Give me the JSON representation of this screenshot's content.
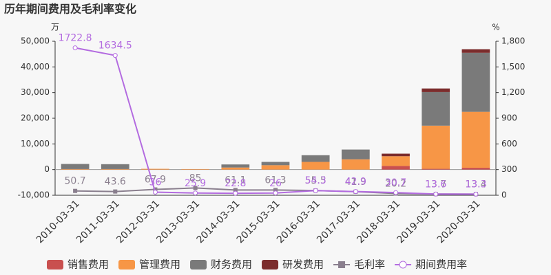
{
  "chart_data": {
    "type": "bar",
    "title": "历年期间费用及毛利率变化",
    "y_unit": "万",
    "y2_unit": "%",
    "categories": [
      "2010-03-31",
      "2011-03-31",
      "2012-03-31",
      "2013-03-31",
      "2014-03-31",
      "2015-03-31",
      "2016-03-31",
      "2017-03-31",
      "2018-03-31",
      "2019-03-31",
      "2020-03-31"
    ],
    "series": [
      {
        "name": "销售费用",
        "color": "#c9504f",
        "values": [
          0,
          0,
          0,
          0,
          0,
          0,
          0,
          0,
          1400,
          300,
          700
        ]
      },
      {
        "name": "管理费用",
        "color": "#f79646",
        "values": [
          200,
          200,
          300,
          200,
          800,
          1700,
          3000,
          4000,
          3800,
          16800,
          21800
        ]
      },
      {
        "name": "财务费用",
        "color": "#7a7a7a",
        "values": [
          2000,
          1900,
          0,
          0,
          1200,
          1300,
          2600,
          3800,
          0,
          13100,
          23000
        ]
      },
      {
        "name": "研发费用",
        "color": "#7b2c2c",
        "values": [
          0,
          0,
          0,
          0,
          0,
          0,
          0,
          0,
          1000,
          1400,
          1400
        ]
      },
      {
        "name": "毛利率",
        "type": "line",
        "axis": "y2",
        "color": "#8a7f8e",
        "marker": "square",
        "values": [
          50.7,
          43.6,
          67.9,
          85,
          61.1,
          61.3,
          55.5,
          41.9,
          20.2,
          13.7,
          13.4
        ]
      },
      {
        "name": "期间费用率",
        "type": "line",
        "axis": "y2",
        "color": "#b36be0",
        "marker": "circle",
        "values": [
          1722.8,
          1634.5,
          36,
          25.9,
          22.8,
          26,
          54.3,
          42.9,
          30.7,
          13.6,
          13.3
        ]
      }
    ],
    "ylim": [
      -10000,
      50000
    ],
    "yticks": [
      {
        "value": -10000,
        "label": "-10,000"
      },
      0,
      {
        "value": 10000,
        "label": "10,000"
      },
      {
        "value": 20000,
        "label": "20,000"
      },
      {
        "value": 30000,
        "label": "30,000"
      },
      {
        "value": 40000,
        "label": "40,000"
      },
      {
        "value": 50000,
        "label": "50,000"
      }
    ],
    "y2lim": [
      0,
      1800
    ],
    "y2ticks": [
      0,
      300,
      600,
      900,
      {
        "value": 1200,
        "label": "1,200"
      },
      {
        "value": 1500,
        "label": "1,500"
      },
      {
        "value": 1800,
        "label": "1,800"
      }
    ],
    "grid": false
  }
}
